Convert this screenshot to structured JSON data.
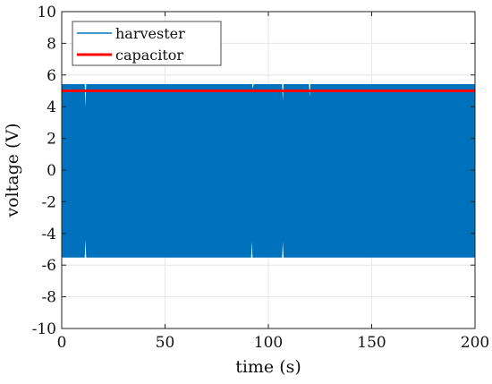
{
  "chart_data": {
    "type": "line",
    "title": "",
    "xlabel": "time (s)",
    "ylabel": "voltage (V)",
    "xlim": [
      0,
      200
    ],
    "ylim": [
      -10,
      10
    ],
    "x_ticks": [
      0,
      50,
      100,
      150,
      200
    ],
    "y_ticks": [
      -10,
      -8,
      -6,
      -4,
      -2,
      0,
      2,
      4,
      6,
      8,
      10
    ],
    "grid": true,
    "legend_location": "top-left",
    "series": [
      {
        "name": "harvester",
        "color": "#0072BD",
        "style": "dense-oscillation",
        "envelope_upper": [
          [
            0,
            5.4
          ],
          [
            11,
            5.4
          ],
          [
            11.5,
            3.2
          ],
          [
            12,
            5.4
          ],
          [
            92,
            5.4
          ],
          [
            92.5,
            5.0
          ],
          [
            93,
            5.4
          ],
          [
            106.5,
            5.4
          ],
          [
            107,
            3.8
          ],
          [
            107.5,
            5.4
          ],
          [
            119.5,
            5.4
          ],
          [
            120,
            4.2
          ],
          [
            120.5,
            5.4
          ],
          [
            200,
            5.4
          ]
        ],
        "envelope_lower": [
          [
            0,
            -5.5
          ],
          [
            11,
            -5.5
          ],
          [
            11.5,
            -3.8
          ],
          [
            12,
            -5.5
          ],
          [
            91.5,
            -5.5
          ],
          [
            92,
            -4.0
          ],
          [
            92.5,
            -5.5
          ],
          [
            106.5,
            -5.5
          ],
          [
            107,
            -4.0
          ],
          [
            107.5,
            -5.5
          ],
          [
            200,
            -5.5
          ]
        ]
      },
      {
        "name": "capacitor",
        "color": "#FF0000",
        "x": [
          0,
          200
        ],
        "y": [
          5.0,
          5.0
        ]
      }
    ]
  }
}
